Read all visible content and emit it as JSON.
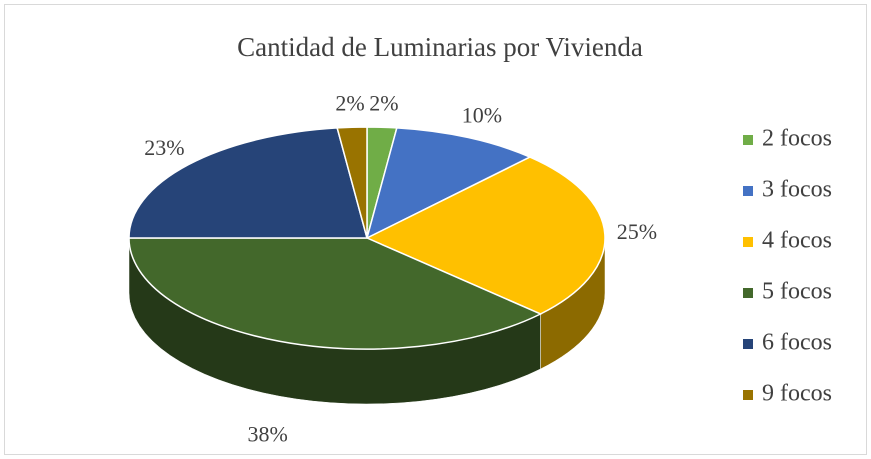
{
  "chart_data": {
    "type": "pie3d",
    "title": "Cantidad de Luminarias por Vivienda",
    "categories": [
      "2 focos",
      "3 focos",
      "4 focos",
      "5 focos",
      "6 focos",
      "9 focos"
    ],
    "values": [
      2,
      10,
      25,
      38,
      23,
      2
    ],
    "value_labels": [
      "2%",
      "10%",
      "25%",
      "38%",
      "23%",
      "2%"
    ],
    "colors": [
      "#70ad47",
      "#4472c4",
      "#ffc000",
      "#43682b",
      "#264478",
      "#997300"
    ],
    "legend": "right"
  }
}
